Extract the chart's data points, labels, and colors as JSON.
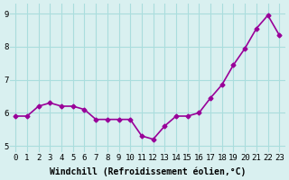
{
  "x": [
    0,
    1,
    2,
    3,
    4,
    5,
    6,
    7,
    8,
    9,
    10,
    11,
    12,
    13,
    14,
    15,
    16,
    17,
    18,
    19,
    20,
    21,
    22,
    23
  ],
  "y": [
    5.9,
    5.9,
    6.2,
    6.3,
    6.2,
    6.2,
    6.1,
    5.8,
    5.8,
    5.8,
    5.8,
    5.3,
    5.2,
    5.6,
    5.9,
    5.9,
    6.0,
    6.45,
    6.85,
    7.45,
    7.95,
    8.55,
    8.95,
    8.35
  ],
  "line_color": "#990099",
  "marker": "D",
  "marker_size": 2.5,
  "bg_color": "#d9f0f0",
  "grid_color": "#aadddd",
  "xlabel": "Windchill (Refroidissement éolien,°C)",
  "xlabel_fontsize": 7,
  "yticks": [
    5,
    6,
    7,
    8,
    9
  ],
  "xticks": [
    0,
    1,
    2,
    3,
    4,
    5,
    6,
    7,
    8,
    9,
    10,
    11,
    12,
    13,
    14,
    15,
    16,
    17,
    18,
    19,
    20,
    21,
    22,
    23
  ],
  "xtick_labels": [
    "0",
    "1",
    "2",
    "3",
    "4",
    "5",
    "6",
    "7",
    "8",
    "9",
    "10",
    "11",
    "12",
    "13",
    "14",
    "15",
    "16",
    "17",
    "18",
    "19",
    "20",
    "21",
    "22",
    "23"
  ],
  "ylim": [
    4.8,
    9.3
  ],
  "xlim": [
    -0.5,
    23.5
  ],
  "tick_fontsize": 6.5,
  "line_width": 1.2
}
